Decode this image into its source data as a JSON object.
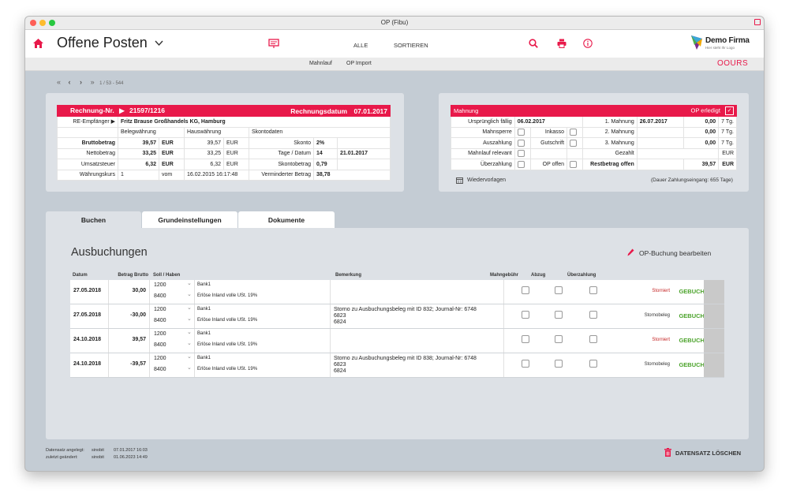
{
  "window": {
    "title": "OP (Fibu)"
  },
  "toolbar": {
    "page_title": "Offene Posten",
    "nav": [
      "ALLE",
      "SORTIEREN"
    ],
    "logo_name": "Demo Firma",
    "logo_sub": "Hier steht Ihr Logo",
    "accent": "#e8194a"
  },
  "subbar": {
    "links": [
      "Mahnlauf",
      "OP Import"
    ],
    "brand": "OOURS"
  },
  "pager": {
    "text": "1 / 53 - 544"
  },
  "invoice": {
    "header_label": "Rechnung-Nr.",
    "number": "21597/1216",
    "date_label": "Rechnungsdatum",
    "date": "07.01.2017",
    "recipient_label": "RE-Empfänger",
    "recipient": "Fritz Brause Großhandels KG, Hamburg",
    "col_heads": [
      "Belegwährung",
      "Hauswährung",
      "Skontodaten"
    ],
    "rows": [
      {
        "label": "Bruttobetrag",
        "v1": "39,57",
        "c1": "EUR",
        "v2": "39,57",
        "c2": "EUR",
        "sk_label": "Skonto",
        "sk_val": "2%",
        "sk_val2": ""
      },
      {
        "label": "Nettobetrag",
        "v1": "33,25",
        "c1": "EUR",
        "v2": "33,25",
        "c2": "EUR",
        "sk_label": "Tage / Datum",
        "sk_val": "14",
        "sk_val2": "21.01.2017"
      },
      {
        "label": "Umsatzsteuer",
        "v1": "6,32",
        "c1": "EUR",
        "v2": "6,32",
        "c2": "EUR",
        "sk_label": "Skontobetrag",
        "sk_val": "0,79",
        "sk_val2": ""
      },
      {
        "label": "Währungskurs",
        "v1": "1",
        "c1": "vom",
        "v2": "16.02.2015 16:17:48",
        "c2": "",
        "sk_label": "Verminderter Betrag",
        "sk_val": "38,78",
        "sk_val2": ""
      }
    ]
  },
  "dunning": {
    "title": "Mahnung",
    "op_done_label": "OP erledigt",
    "orig_due_label": "Ursprünglich fällig",
    "orig_due": "06.02.2017",
    "checks": [
      {
        "label": "Mahnsperre",
        "label2": "Inkasso"
      },
      {
        "label": "Auszahlung",
        "label2": "Gutschrift"
      },
      {
        "label": "Mahnlauf relevant",
        "label2": ""
      },
      {
        "label": "Überzahlung",
        "label2": "OP offen"
      }
    ],
    "levels": [
      {
        "label": "1. Mahnung",
        "date": "26.07.2017",
        "amount": "0,00",
        "days": "7 Tg."
      },
      {
        "label": "2. Mahnung",
        "date": "",
        "amount": "0,00",
        "days": "7 Tg."
      },
      {
        "label": "3. Mahnung",
        "date": "",
        "amount": "0,00",
        "days": "7 Tg."
      }
    ],
    "paid_label": "Gezahlt",
    "paid_cur": "EUR",
    "rest_label": "Restbetrag offen",
    "rest_amount": "39,57",
    "rest_cur": "EUR",
    "templates_label": "Wiedervorlagen",
    "avg_payment": "(Dauer Zahlungseingang: 655 Tage)"
  },
  "tabs": [
    "Buchen",
    "Grundeinstellungen",
    "Dokumente"
  ],
  "bookings": {
    "title": "Ausbuchungen",
    "edit_label": "OP-Buchung bearbeiten",
    "columns": [
      "Datum",
      "Betrag Brutto",
      "Soll / Haben",
      "Bemerkung",
      "Mahngebühr",
      "Abzug",
      "Überzahlung"
    ],
    "rows": [
      {
        "date": "27.05.2018",
        "amount": "30,00",
        "acc1": "1200",
        "acc1_name": "Bank1",
        "acc2": "8400",
        "acc2_name": "Erlöse Inland volle USt. 19%",
        "remark": [
          "",
          "",
          ""
        ],
        "state": "Storniert",
        "state_red": true,
        "status": "GEBUCHT"
      },
      {
        "date": "27.05.2018",
        "amount": "-30,00",
        "acc1": "1200",
        "acc1_name": "Bank1",
        "acc2": "8400",
        "acc2_name": "Erlöse Inland volle USt. 19%",
        "remark": [
          "Storno zu Ausbuchungsbeleg mit ID 832; Journal-Nr: 6748",
          "6823",
          "6824"
        ],
        "state": "Stornobeleg",
        "state_red": false,
        "status": "GEBUCHT"
      },
      {
        "date": "24.10.2018",
        "amount": "39,57",
        "acc1": "1200",
        "acc1_name": "Bank1",
        "acc2": "8400",
        "acc2_name": "Erlöse Inland volle USt. 19%",
        "remark": [
          "",
          "",
          ""
        ],
        "state": "Storniert",
        "state_red": true,
        "status": "GEBUCHT"
      },
      {
        "date": "24.10.2018",
        "amount": "-39,57",
        "acc1": "1200",
        "acc1_name": "Bank1",
        "acc2": "8400",
        "acc2_name": "Erlöse Inland volle USt. 19%",
        "remark": [
          "Storno zu Ausbuchungsbeleg mit ID 838; Journal-Nr: 6748",
          "6823",
          "6824"
        ],
        "state": "Stornobeleg",
        "state_red": false,
        "status": "GEBUCHT"
      }
    ]
  },
  "footer": {
    "created_label": "Datensatz angelegt:",
    "created_user": "sinobit",
    "created_at": "07.01.2017 16:03",
    "changed_label": "zuletzt geändert:",
    "changed_user": "sinobit",
    "changed_at": "01.06.2023 14:49",
    "delete_label": "DATENSATZ LÖSCHEN"
  }
}
